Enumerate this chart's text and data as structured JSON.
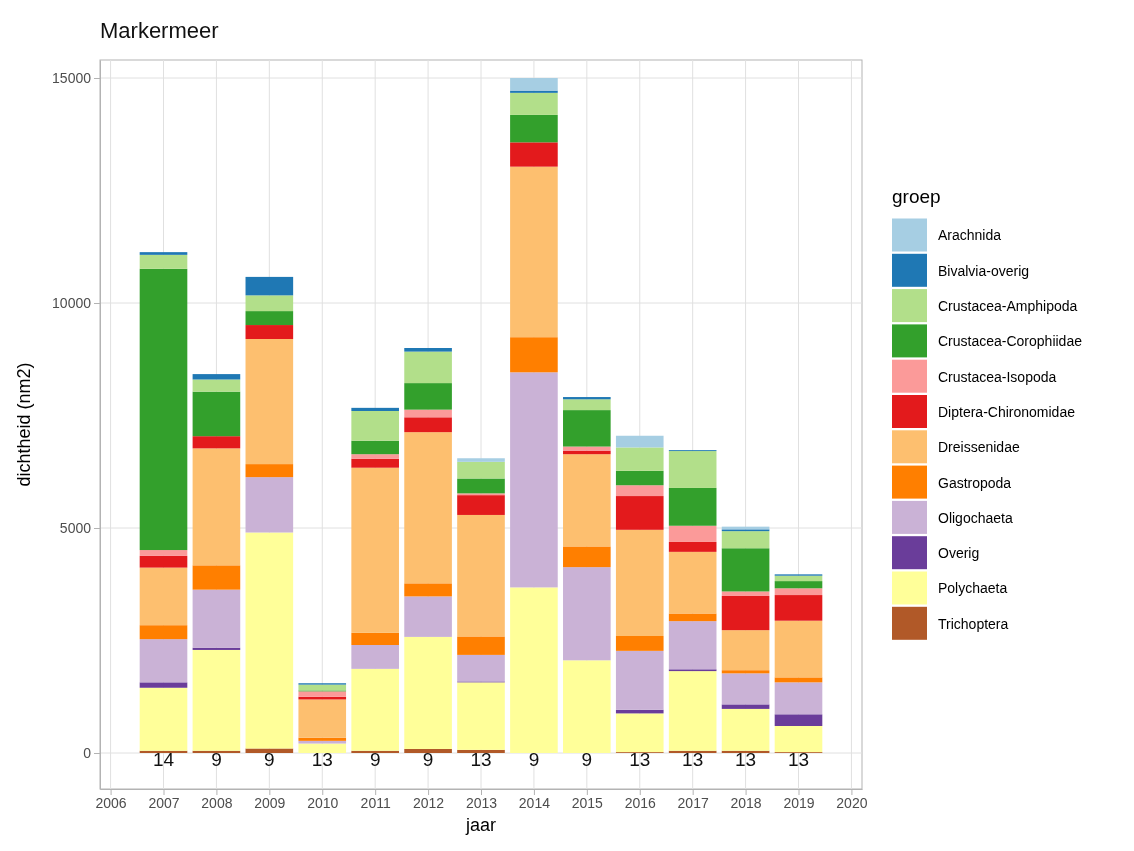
{
  "chart_data": {
    "type": "bar",
    "stacked": true,
    "title": "Markermeer",
    "xlabel": "jaar",
    "ylabel": "dichtheid (nm2)",
    "legend_title": "groep",
    "legend": "right",
    "grid": true,
    "x": [
      2007,
      2008,
      2009,
      2010,
      2011,
      2012,
      2013,
      2014,
      2015,
      2016,
      2017,
      2018,
      2019
    ],
    "xlim": [
      2005.8,
      2020.2
    ],
    "xticks": [
      2006,
      2007,
      2008,
      2009,
      2010,
      2011,
      2012,
      2013,
      2014,
      2015,
      2016,
      2017,
      2018,
      2019,
      2020
    ],
    "ylim": [
      -800,
      15400
    ],
    "yticks": [
      0,
      5000,
      10000,
      15000
    ],
    "series": [
      {
        "name": "Trichoptera",
        "color": "#b15928",
        "values": [
          50,
          50,
          100,
          null,
          50,
          90,
          70,
          0,
          0,
          20,
          50,
          50,
          20
        ]
      },
      {
        "name": "Polychaeta",
        "color": "#ffff99",
        "values": [
          1400,
          2240,
          4800,
          210,
          1820,
          2490,
          1500,
          3680,
          2060,
          860,
          1770,
          930,
          580
        ]
      },
      {
        "name": "Overig",
        "color": "#6a3d9a",
        "values": [
          120,
          50,
          0,
          0,
          0,
          0,
          20,
          0,
          0,
          80,
          40,
          100,
          260
        ]
      },
      {
        "name": "Oligochaeta",
        "color": "#cab2d6",
        "values": [
          960,
          1290,
          1230,
          60,
          530,
          900,
          590,
          4780,
          2070,
          1310,
          1070,
          690,
          710
        ]
      },
      {
        "name": "Gastropoda",
        "color": "#ff7f00",
        "values": [
          310,
          540,
          290,
          70,
          270,
          290,
          410,
          780,
          460,
          330,
          170,
          70,
          110
        ]
      },
      {
        "name": "Dreissenidae",
        "color": "#fdbf6f",
        "values": [
          1280,
          2600,
          2780,
          850,
          3670,
          3360,
          2700,
          3790,
          2050,
          2360,
          1370,
          890,
          1260
        ]
      },
      {
        "name": "Diptera-Chironomidae",
        "color": "#e31a1c",
        "values": [
          260,
          270,
          310,
          60,
          200,
          330,
          440,
          540,
          80,
          750,
          220,
          760,
          570
        ]
      },
      {
        "name": "Crustacea-Isopoda",
        "color": "#fb9a99",
        "values": [
          130,
          null,
          0,
          120,
          100,
          170,
          40,
          0,
          90,
          240,
          360,
          100,
          150
        ]
      },
      {
        "name": "Crustacea-Corophiidae",
        "color": "#33a02c",
        "values": [
          6250,
          990,
          310,
          20,
          300,
          590,
          330,
          610,
          810,
          320,
          840,
          960,
          160
        ]
      },
      {
        "name": "Crustacea-Amphipoda",
        "color": "#b2df8a",
        "values": [
          310,
          270,
          350,
          130,
          660,
          700,
          370,
          490,
          240,
          520,
          820,
          380,
          120
        ]
      },
      {
        "name": "Bivalvia-overig",
        "color": "#1f78b4",
        "values": [
          60,
          120,
          410,
          30,
          70,
          80,
          0,
          50,
          50,
          null,
          20,
          40,
          30
        ]
      },
      {
        "name": "Arachnida",
        "color": "#a6cee3",
        "values": [
          0,
          0,
          null,
          0,
          0,
          0,
          80,
          280,
          0,
          260,
          0,
          60,
          0
        ]
      }
    ],
    "annotations": [
      "14",
      "9",
      "9",
      "13",
      "9",
      "9",
      "13",
      "9",
      "9",
      "13",
      "13",
      "13",
      "13"
    ]
  }
}
